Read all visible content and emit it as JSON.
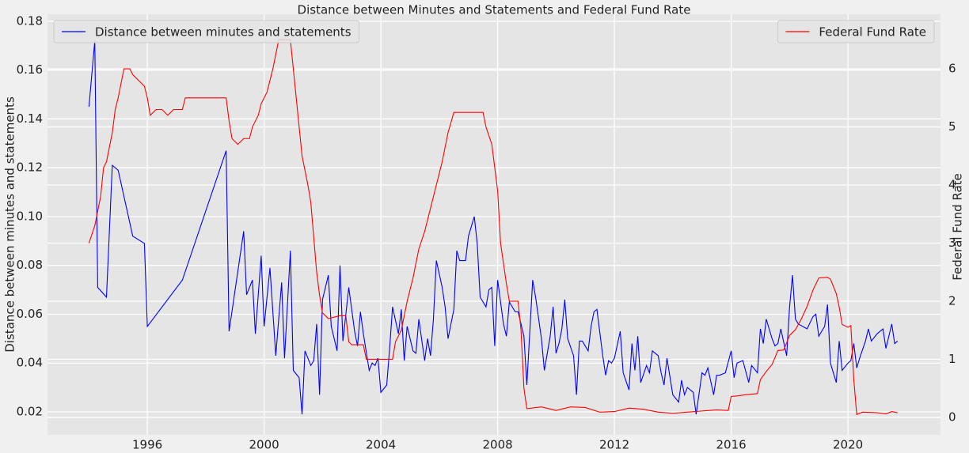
{
  "chart_data": {
    "type": "line",
    "title": "Distance between Minutes and Statements and Federal Fund Rate",
    "y_label": "Distance between minutes and statements",
    "y2_label": "Federal Fund Rate",
    "xlim": [
      1992.58,
      2023.17
    ],
    "xticks": [
      1996,
      2000,
      2004,
      2008,
      2012,
      2016,
      2020
    ],
    "ylim": [
      0.0106,
      0.1829
    ],
    "yticks": [
      0.02,
      0.04,
      0.06,
      0.08,
      {
        "value": 0.1,
        "label": "0.10"
      },
      0.12,
      0.14,
      0.16,
      0.18
    ],
    "y2lim": [
      -0.3,
      6.94
    ],
    "y2ticks": [
      0,
      1,
      2,
      3,
      4,
      5,
      6
    ],
    "grid": true,
    "series": [
      {
        "name": "Distance between minutes and statements",
        "color": "#0000ff",
        "legend": "upper left",
        "x": [
          1994.0,
          1994.2,
          1994.3,
          1994.6,
          1994.8,
          1995.0,
          1995.5,
          1995.9,
          1996.0,
          1997.2,
          1998.7,
          1998.8,
          1999.3,
          1999.4,
          1999.6,
          1999.7,
          1999.9,
          2000.0,
          2000.2,
          2000.4,
          2000.6,
          2000.7,
          2000.9,
          2001.0,
          2001.2,
          2001.3,
          2001.4,
          2001.6,
          2001.7,
          2001.8,
          2001.9,
          2002.0,
          2002.2,
          2002.3,
          2002.5,
          2002.6,
          2002.7,
          2002.9,
          2003.1,
          2003.2,
          2003.3,
          2003.4,
          2003.6,
          2003.7,
          2003.8,
          2003.9,
          2004.0,
          2004.2,
          2004.3,
          2004.4,
          2004.6,
          2004.7,
          2004.8,
          2004.9,
          2005.1,
          2005.2,
          2005.3,
          2005.5,
          2005.6,
          2005.7,
          2005.8,
          2005.9,
          2006.1,
          2006.2,
          2006.3,
          2006.5,
          2006.6,
          2006.7,
          2006.9,
          2007.0,
          2007.2,
          2007.3,
          2007.4,
          2007.6,
          2007.7,
          2007.8,
          2007.9,
          2008.0,
          2008.2,
          2008.3,
          2008.4,
          2008.6,
          2008.7,
          2008.9,
          2009.0,
          2009.2,
          2009.3,
          2009.5,
          2009.6,
          2009.8,
          2009.9,
          2010.0,
          2010.1,
          2010.2,
          2010.3,
          2010.4,
          2010.6,
          2010.7,
          2010.8,
          2010.9,
          2011.1,
          2011.2,
          2011.3,
          2011.4,
          2011.6,
          2011.7,
          2011.8,
          2011.9,
          2012.0,
          2012.2,
          2012.3,
          2012.5,
          2012.6,
          2012.7,
          2012.8,
          2012.9,
          2013.1,
          2013.2,
          2013.3,
          2013.5,
          2013.6,
          2013.7,
          2013.8,
          2014.0,
          2014.2,
          2014.3,
          2014.4,
          2014.5,
          2014.7,
          2014.8,
          2015.0,
          2015.1,
          2015.2,
          2015.4,
          2015.5,
          2015.6,
          2015.8,
          2016.0,
          2016.1,
          2016.2,
          2016.4,
          2016.6,
          2016.7,
          2016.9,
          2017.0,
          2017.1,
          2017.2,
          2017.4,
          2017.5,
          2017.6,
          2017.7,
          2017.9,
          2018.0,
          2018.1,
          2018.2,
          2018.3,
          2018.6,
          2018.8,
          2018.9,
          2019.0,
          2019.2,
          2019.3,
          2019.4,
          2019.6,
          2019.7,
          2019.8,
          2020.0,
          2020.1,
          2020.2,
          2020.3,
          2020.4,
          2020.6,
          2020.7,
          2020.8,
          2021.0,
          2021.1,
          2021.2,
          2021.3,
          2021.5,
          2021.6,
          2021.7
        ],
        "values": [
          0.145,
          0.172,
          0.071,
          0.067,
          0.121,
          0.119,
          0.092,
          0.089,
          0.055,
          0.074,
          0.127,
          0.053,
          0.094,
          0.068,
          0.074,
          0.052,
          0.084,
          0.055,
          0.079,
          0.043,
          0.073,
          0.042,
          0.086,
          0.037,
          0.034,
          0.019,
          0.045,
          0.039,
          0.041,
          0.056,
          0.027,
          0.066,
          0.076,
          0.055,
          0.045,
          0.08,
          0.049,
          0.071,
          0.053,
          0.047,
          0.061,
          0.052,
          0.037,
          0.04,
          0.039,
          0.042,
          0.028,
          0.031,
          0.046,
          0.063,
          0.052,
          0.062,
          0.041,
          0.055,
          0.045,
          0.044,
          0.058,
          0.041,
          0.05,
          0.043,
          0.058,
          0.082,
          0.071,
          0.063,
          0.05,
          0.062,
          0.086,
          0.082,
          0.082,
          0.092,
          0.1,
          0.089,
          0.067,
          0.063,
          0.07,
          0.071,
          0.047,
          0.074,
          0.056,
          0.051,
          0.065,
          0.061,
          0.061,
          0.051,
          0.031,
          0.074,
          0.067,
          0.05,
          0.037,
          0.051,
          0.063,
          0.044,
          0.048,
          0.054,
          0.066,
          0.05,
          0.043,
          0.027,
          0.049,
          0.049,
          0.045,
          0.055,
          0.061,
          0.062,
          0.043,
          0.035,
          0.041,
          0.04,
          0.042,
          0.053,
          0.036,
          0.029,
          0.048,
          0.037,
          0.051,
          0.032,
          0.039,
          0.036,
          0.045,
          0.043,
          0.036,
          0.031,
          0.042,
          0.027,
          0.024,
          0.033,
          0.027,
          0.03,
          0.028,
          0.019,
          0.036,
          0.035,
          0.038,
          0.027,
          0.035,
          0.035,
          0.036,
          0.045,
          0.034,
          0.04,
          0.041,
          0.032,
          0.039,
          0.036,
          0.054,
          0.048,
          0.058,
          0.05,
          0.047,
          0.048,
          0.054,
          0.043,
          0.063,
          0.076,
          0.058,
          0.056,
          0.054,
          0.059,
          0.06,
          0.051,
          0.055,
          0.064,
          0.04,
          0.032,
          0.049,
          0.037,
          0.04,
          0.041,
          0.048,
          0.038,
          0.042,
          0.049,
          0.054,
          0.049,
          0.052,
          0.053,
          0.054,
          0.046,
          0.056,
          0.048,
          0.049
        ]
      },
      {
        "name": "Federal Fund Rate",
        "color": "#ff0000",
        "axis": "y2",
        "legend": "upper right",
        "x": [
          1994.0,
          1994.2,
          1994.4,
          1994.5,
          1994.6,
          1994.8,
          1994.9,
          1995.0,
          1995.2,
          1995.4,
          1995.5,
          1995.7,
          1995.9,
          1996.0,
          1996.1,
          1996.3,
          1996.5,
          1996.7,
          1996.9,
          1997.2,
          1997.3,
          1997.6,
          1998.0,
          1998.3,
          1998.7,
          1998.8,
          1998.9,
          1999.1,
          1999.3,
          1999.5,
          1999.6,
          1999.8,
          1999.9,
          2000.1,
          2000.3,
          2000.5,
          2000.6,
          2000.9,
          2001.0,
          2001.1,
          2001.3,
          2001.5,
          2001.6,
          2001.7,
          2001.8,
          2001.9,
          2002.0,
          2002.2,
          2002.6,
          2002.8,
          2002.9,
          2003.0,
          2003.4,
          2003.5,
          2003.9,
          2004.4,
          2004.5,
          2004.7,
          2004.9,
          2005.1,
          2005.3,
          2005.5,
          2005.7,
          2005.9,
          2006.1,
          2006.3,
          2006.5,
          2006.8,
          2007.0,
          2007.2,
          2007.5,
          2007.6,
          2007.8,
          2007.9,
          2008.0,
          2008.1,
          2008.3,
          2008.4,
          2008.7,
          2008.8,
          2008.9,
          2009.0,
          2009.5,
          2010.0,
          2010.5,
          2011.0,
          2011.5,
          2012.0,
          2012.5,
          2013.0,
          2013.5,
          2014.0,
          2014.5,
          2015.0,
          2015.5,
          2015.9,
          2016.0,
          2016.2,
          2016.5,
          2016.9,
          2017.0,
          2017.2,
          2017.4,
          2017.6,
          2017.8,
          2018.0,
          2018.2,
          2018.4,
          2018.6,
          2018.8,
          2019.0,
          2019.3,
          2019.4,
          2019.6,
          2019.7,
          2019.8,
          2020.0,
          2020.1,
          2020.2,
          2020.3,
          2020.5,
          2021.0,
          2021.3,
          2021.5,
          2021.7
        ],
        "values": [
          3.0,
          3.3,
          3.8,
          4.3,
          4.4,
          4.9,
          5.3,
          5.5,
          6.0,
          6.0,
          5.9,
          5.8,
          5.7,
          5.5,
          5.2,
          5.3,
          5.3,
          5.2,
          5.3,
          5.3,
          5.5,
          5.5,
          5.5,
          5.5,
          5.5,
          5.1,
          4.8,
          4.7,
          4.8,
          4.8,
          5.0,
          5.2,
          5.4,
          5.6,
          6.0,
          6.5,
          6.5,
          6.5,
          6.0,
          5.5,
          4.5,
          4.0,
          3.7,
          3.1,
          2.5,
          2.1,
          1.8,
          1.7,
          1.75,
          1.75,
          1.3,
          1.25,
          1.25,
          1.0,
          1.0,
          1.0,
          1.3,
          1.5,
          2.0,
          2.4,
          2.9,
          3.2,
          3.6,
          4.0,
          4.4,
          4.9,
          5.25,
          5.25,
          5.25,
          5.25,
          5.25,
          5.0,
          4.7,
          4.3,
          3.9,
          3.0,
          2.3,
          2.0,
          2.0,
          1.5,
          0.5,
          0.15,
          0.18,
          0.12,
          0.18,
          0.17,
          0.09,
          0.1,
          0.16,
          0.14,
          0.09,
          0.07,
          0.09,
          0.11,
          0.13,
          0.12,
          0.36,
          0.37,
          0.39,
          0.41,
          0.65,
          0.79,
          0.91,
          1.15,
          1.16,
          1.41,
          1.51,
          1.69,
          1.91,
          2.19,
          2.4,
          2.41,
          2.38,
          2.13,
          1.9,
          1.6,
          1.55,
          1.58,
          0.65,
          0.05,
          0.09,
          0.08,
          0.06,
          0.1,
          0.08
        ]
      }
    ]
  }
}
